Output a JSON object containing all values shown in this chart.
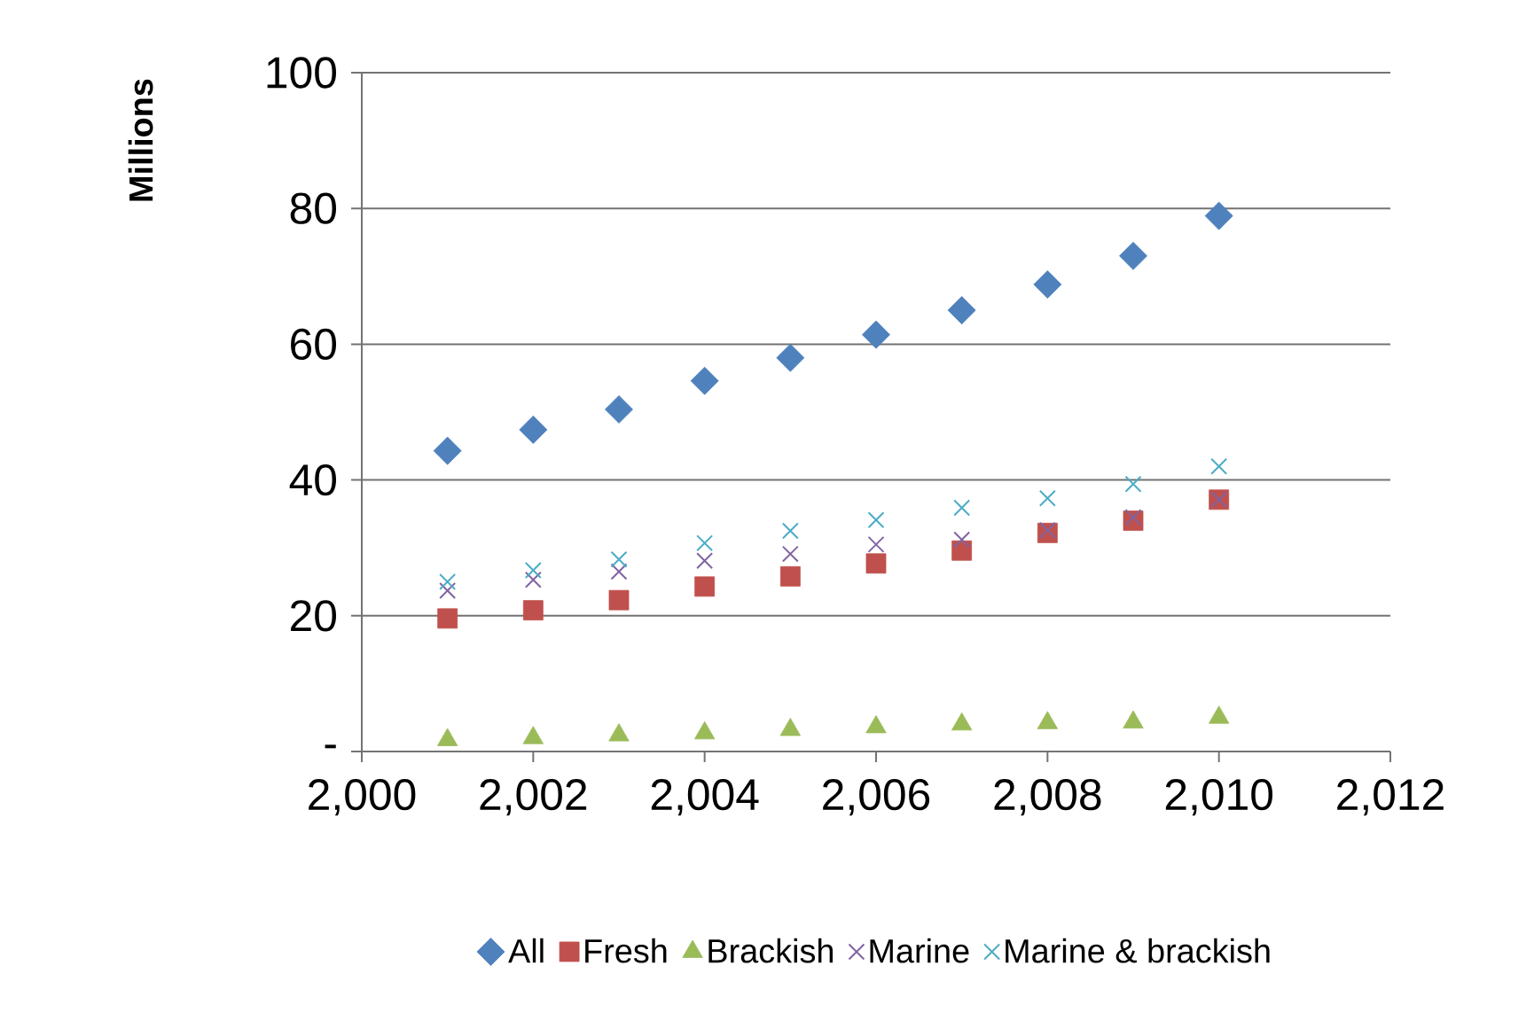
{
  "chart_data": {
    "type": "scatter",
    "ylabel": "Millions",
    "x": [
      2001,
      2002,
      2003,
      2004,
      2005,
      2006,
      2007,
      2008,
      2009,
      2010
    ],
    "series": [
      {
        "name": "All",
        "color": "#4f81bd",
        "marker": "diamond",
        "values": [
          44.3,
          47.4,
          50.4,
          54.6,
          58.0,
          61.4,
          65.0,
          68.8,
          73.0,
          78.9
        ]
      },
      {
        "name": "Fresh",
        "color": "#c0504d",
        "marker": "square",
        "values": [
          19.6,
          20.8,
          22.3,
          24.3,
          25.8,
          27.7,
          29.6,
          32.2,
          34.0,
          37.1
        ]
      },
      {
        "name": "Brackish",
        "color": "#9bbb59",
        "marker": "triangle",
        "values": [
          1.7,
          2.0,
          2.4,
          2.7,
          3.2,
          3.6,
          4.0,
          4.2,
          4.3,
          5.0
        ]
      },
      {
        "name": "Marine",
        "color": "#8064a2",
        "marker": "cross",
        "values": [
          23.7,
          25.3,
          26.5,
          28.1,
          29.1,
          30.5,
          31.2,
          32.6,
          34.5,
          37.1
        ]
      },
      {
        "name": "Marine & brackish",
        "color": "#4bacc6",
        "marker": "cross",
        "values": [
          25.0,
          26.7,
          28.3,
          30.7,
          32.5,
          34.1,
          35.9,
          37.3,
          39.4,
          42.0
        ]
      }
    ],
    "xlim": [
      2000,
      2012
    ],
    "xticks": [
      {
        "value": 2000,
        "label": "2,000"
      },
      {
        "value": 2002,
        "label": "2,002"
      },
      {
        "value": 2004,
        "label": "2,004"
      },
      {
        "value": 2006,
        "label": "2,006"
      },
      {
        "value": 2008,
        "label": "2,008"
      },
      {
        "value": 2010,
        "label": "2,010"
      },
      {
        "value": 2012,
        "label": "2,012"
      }
    ],
    "ylim": [
      0,
      100
    ],
    "yticks": [
      {
        "value": 0,
        "label": "-"
      },
      20,
      40,
      60,
      80,
      100
    ],
    "grid": "y",
    "legend": "bottom"
  }
}
